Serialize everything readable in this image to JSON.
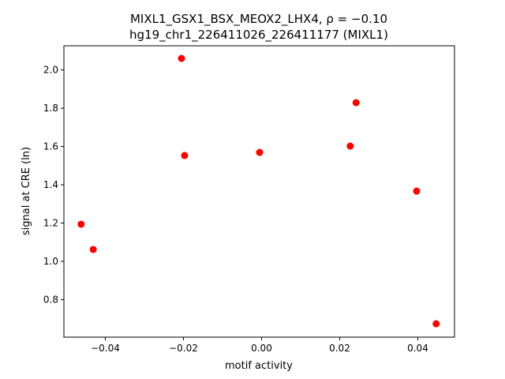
{
  "chart_data": {
    "type": "scatter",
    "title": "MIXL1_GSX1_BSX_MEOX2_LHX4, ρ = −0.10",
    "subtitle": "hg19_chr1_226411026_226411177 (MIXL1)",
    "x_label": "motif activity",
    "y_label": "signal at CRE (ln)",
    "x": [
      -0.0462,
      -0.0431,
      -0.0205,
      -0.0197,
      -0.0005,
      0.0227,
      0.0242,
      0.0397,
      0.0447
    ],
    "values": [
      1.194,
      1.062,
      2.06,
      1.553,
      1.569,
      1.602,
      1.829,
      1.367,
      0.674
    ],
    "color": "#ff0000",
    "xlim": [
      -0.0506,
      0.0494
    ],
    "ylim": [
      0.604,
      2.126
    ],
    "xticks": [
      {
        "value": -0.04,
        "label": "−0.04"
      },
      {
        "value": -0.02,
        "label": "−0.02"
      },
      {
        "value": 0,
        "label": "0.00"
      },
      0.02,
      0.04
    ],
    "yticks": [
      0.8,
      {
        "value": 1,
        "label": "1.0"
      },
      1.2,
      1.4,
      1.6,
      1.8,
      {
        "value": 2,
        "label": "2.0"
      }
    ]
  }
}
